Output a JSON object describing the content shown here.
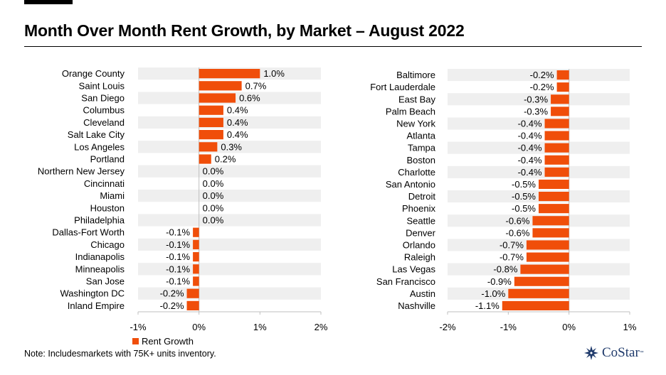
{
  "title": "Month Over Month Rent Growth, by Market  – August 2022",
  "note": "Note: Includesmarkets with 75K+ units inventory.",
  "legend": {
    "label": "Rent Growth",
    "color": "#F04E0A"
  },
  "logo": {
    "text": "CoStar",
    "tm": "™",
    "icon": "costar-star-icon"
  },
  "colors": {
    "bar": "#F04E0A",
    "band": "#EFEFEF",
    "axis": "#BFBFBF"
  },
  "chart_data": [
    {
      "type": "bar",
      "orientation": "horizontal",
      "series_name": "Rent Growth",
      "categories": [
        "Orange County",
        "Saint Louis",
        "San Diego",
        "Columbus",
        "Cleveland",
        "Salt Lake City",
        "Los Angeles",
        "Portland",
        "Northern New Jersey",
        "Cincinnati",
        "Miami",
        "Houston",
        "Philadelphia",
        "Dallas-Fort Worth",
        "Chicago",
        "Indianapolis",
        "Minneapolis",
        "San Jose",
        "Washington DC",
        "Inland Empire"
      ],
      "values": [
        1.0,
        0.7,
        0.6,
        0.4,
        0.4,
        0.4,
        0.3,
        0.2,
        0.0,
        0.0,
        0.0,
        0.0,
        0.0,
        -0.1,
        -0.1,
        -0.1,
        -0.1,
        -0.1,
        -0.2,
        -0.2
      ],
      "data_labels": [
        "1.0%",
        "0.7%",
        "0.6%",
        "0.4%",
        "0.4%",
        "0.4%",
        "0.3%",
        "0.2%",
        "0.0%",
        "0.0%",
        "0.0%",
        "0.0%",
        "0.0%",
        "-0.1%",
        "-0.1%",
        "-0.1%",
        "-0.1%",
        "-0.1%",
        "-0.2%",
        "-0.2%"
      ],
      "xlim": [
        -1,
        2
      ],
      "ticks": [
        -1,
        0,
        1,
        2
      ],
      "tick_labels": [
        "-1%",
        "0%",
        "1%",
        "2%"
      ]
    },
    {
      "type": "bar",
      "orientation": "horizontal",
      "series_name": "Rent Growth",
      "categories": [
        "Baltimore",
        "Fort Lauderdale",
        "East Bay",
        "Palm Beach",
        "New York",
        "Atlanta",
        "Tampa",
        "Boston",
        "Charlotte",
        "San Antonio",
        "Detroit",
        "Phoenix",
        "Seattle",
        "Denver",
        "Orlando",
        "Raleigh",
        "Las Vegas",
        "San Francisco",
        "Austin",
        "Nashville"
      ],
      "values": [
        -0.2,
        -0.2,
        -0.3,
        -0.3,
        -0.4,
        -0.4,
        -0.4,
        -0.4,
        -0.4,
        -0.5,
        -0.5,
        -0.5,
        -0.6,
        -0.6,
        -0.7,
        -0.7,
        -0.8,
        -0.9,
        -1.0,
        -1.1
      ],
      "data_labels": [
        "-0.2%",
        "-0.2%",
        "-0.3%",
        "-0.3%",
        "-0.4%",
        "-0.4%",
        "-0.4%",
        "-0.4%",
        "-0.4%",
        "-0.5%",
        "-0.5%",
        "-0.5%",
        "-0.6%",
        "-0.6%",
        "-0.7%",
        "-0.7%",
        "-0.8%",
        "-0.9%",
        "-1.0%",
        "-1.1%"
      ],
      "xlim": [
        -2,
        1
      ],
      "ticks": [
        -2,
        -1,
        0,
        1
      ],
      "tick_labels": [
        "-2%",
        "-1%",
        "0%",
        "1%"
      ]
    }
  ]
}
